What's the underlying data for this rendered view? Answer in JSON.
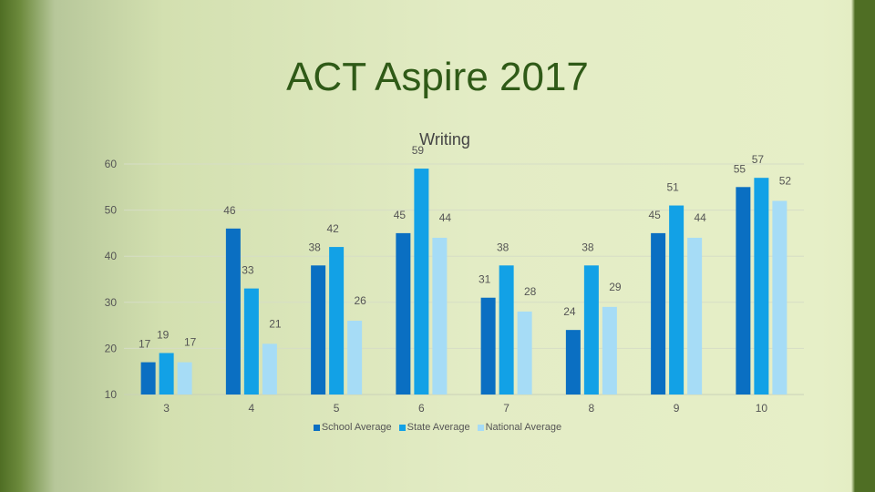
{
  "slide": {
    "title": "ACT Aspire 2017"
  },
  "colors": {
    "school": "#0a6fc2",
    "state": "#12a1e6",
    "national": "#a6dcf6"
  },
  "chart_data": {
    "type": "bar",
    "title": "Writing",
    "categories": [
      "3",
      "4",
      "5",
      "6",
      "7",
      "8",
      "9",
      "10"
    ],
    "series": [
      {
        "name": "School Average",
        "values": [
          17,
          46,
          38,
          45,
          31,
          24,
          45,
          55
        ]
      },
      {
        "name": "State Average",
        "values": [
          19,
          33,
          42,
          59,
          38,
          38,
          51,
          57
        ]
      },
      {
        "name": "National Average",
        "values": [
          17,
          21,
          26,
          44,
          28,
          29,
          44,
          52
        ]
      }
    ],
    "ylim": [
      10,
      60
    ],
    "yticks": [
      10,
      20,
      30,
      40,
      50,
      60
    ],
    "grid": true,
    "legend": "bottom"
  }
}
